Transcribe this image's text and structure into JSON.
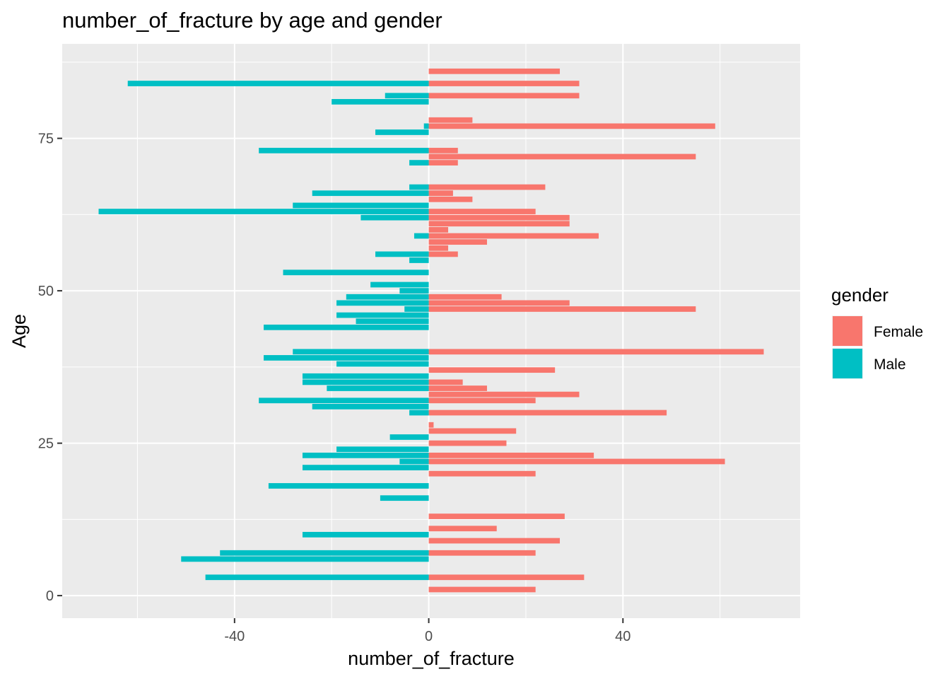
{
  "chart_data": {
    "type": "bar",
    "orientation": "horizontal",
    "title": "number_of_fracture by age and gender",
    "xlabel": "number_of_fracture",
    "ylabel": "Age",
    "xlim": [
      -75.5,
      76.5
    ],
    "ylim": [
      -3.7,
      90.5
    ],
    "x_ticks": [
      -40,
      0,
      40
    ],
    "x_tick_labels": [
      "-40",
      "0",
      "40"
    ],
    "y_ticks": [
      0,
      25,
      50,
      75
    ],
    "y_tick_labels": [
      "0",
      "25",
      "50",
      "75"
    ],
    "grid": true,
    "legend": {
      "title": "gender",
      "position": "right"
    },
    "series": [
      {
        "name": "Female",
        "color": "#F8766D",
        "points": [
          {
            "age": 1,
            "value": 22
          },
          {
            "age": 3,
            "value": 32
          },
          {
            "age": 7,
            "value": 22
          },
          {
            "age": 9,
            "value": 27
          },
          {
            "age": 11,
            "value": 14
          },
          {
            "age": 13,
            "value": 28
          },
          {
            "age": 20,
            "value": 22
          },
          {
            "age": 22,
            "value": 61
          },
          {
            "age": 23,
            "value": 34
          },
          {
            "age": 25,
            "value": 16
          },
          {
            "age": 27,
            "value": 18
          },
          {
            "age": 28,
            "value": 1
          },
          {
            "age": 30,
            "value": 49
          },
          {
            "age": 32,
            "value": 22
          },
          {
            "age": 33,
            "value": 31
          },
          {
            "age": 34,
            "value": 12
          },
          {
            "age": 35,
            "value": 7
          },
          {
            "age": 37,
            "value": 26
          },
          {
            "age": 40,
            "value": 69
          },
          {
            "age": 47,
            "value": 55
          },
          {
            "age": 48,
            "value": 29
          },
          {
            "age": 49,
            "value": 15
          },
          {
            "age": 56,
            "value": 6
          },
          {
            "age": 57,
            "value": 4
          },
          {
            "age": 58,
            "value": 12
          },
          {
            "age": 59,
            "value": 35
          },
          {
            "age": 60,
            "value": 4
          },
          {
            "age": 61,
            "value": 29
          },
          {
            "age": 62,
            "value": 29
          },
          {
            "age": 63,
            "value": 22
          },
          {
            "age": 65,
            "value": 9
          },
          {
            "age": 66,
            "value": 5
          },
          {
            "age": 67,
            "value": 24
          },
          {
            "age": 71,
            "value": 6
          },
          {
            "age": 72,
            "value": 55
          },
          {
            "age": 73,
            "value": 6
          },
          {
            "age": 77,
            "value": 59
          },
          {
            "age": 78,
            "value": 9
          },
          {
            "age": 82,
            "value": 31
          },
          {
            "age": 84,
            "value": 31
          },
          {
            "age": 86,
            "value": 27
          }
        ]
      },
      {
        "name": "Male",
        "color": "#00BFC4",
        "points": [
          {
            "age": 3,
            "value": -46
          },
          {
            "age": 6,
            "value": -51
          },
          {
            "age": 7,
            "value": -43
          },
          {
            "age": 10,
            "value": -26
          },
          {
            "age": 16,
            "value": -10
          },
          {
            "age": 18,
            "value": -33
          },
          {
            "age": 21,
            "value": -26
          },
          {
            "age": 22,
            "value": -6
          },
          {
            "age": 23,
            "value": -26
          },
          {
            "age": 24,
            "value": -19
          },
          {
            "age": 26,
            "value": -8
          },
          {
            "age": 30,
            "value": -4
          },
          {
            "age": 31,
            "value": -24
          },
          {
            "age": 32,
            "value": -35
          },
          {
            "age": 34,
            "value": -21
          },
          {
            "age": 35,
            "value": -26
          },
          {
            "age": 36,
            "value": -26
          },
          {
            "age": 38,
            "value": -19
          },
          {
            "age": 39,
            "value": -34
          },
          {
            "age": 40,
            "value": -28
          },
          {
            "age": 44,
            "value": -34
          },
          {
            "age": 45,
            "value": -15
          },
          {
            "age": 46,
            "value": -19
          },
          {
            "age": 47,
            "value": -5
          },
          {
            "age": 48,
            "value": -19
          },
          {
            "age": 49,
            "value": -17
          },
          {
            "age": 50,
            "value": -6
          },
          {
            "age": 51,
            "value": -12
          },
          {
            "age": 53,
            "value": -30
          },
          {
            "age": 55,
            "value": -4
          },
          {
            "age": 56,
            "value": -11
          },
          {
            "age": 59,
            "value": -3
          },
          {
            "age": 62,
            "value": -14
          },
          {
            "age": 63,
            "value": -68
          },
          {
            "age": 64,
            "value": -28
          },
          {
            "age": 66,
            "value": -24
          },
          {
            "age": 67,
            "value": -4
          },
          {
            "age": 71,
            "value": -4
          },
          {
            "age": 73,
            "value": -35
          },
          {
            "age": 76,
            "value": -11
          },
          {
            "age": 77,
            "value": -1
          },
          {
            "age": 81,
            "value": -20
          },
          {
            "age": 82,
            "value": -9
          },
          {
            "age": 84,
            "value": -62
          }
        ]
      }
    ]
  }
}
